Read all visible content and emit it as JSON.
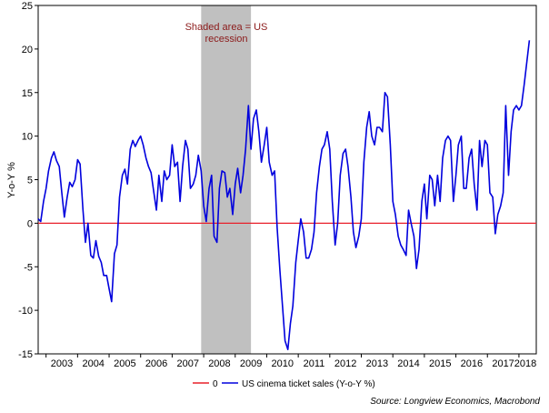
{
  "chart_data": {
    "type": "line",
    "ylabel": "Y-o-Y %",
    "ylim": [
      -15,
      25
    ],
    "yticks": [
      -15,
      -10,
      -5,
      0,
      5,
      10,
      15,
      20,
      25
    ],
    "xlim": [
      2002.75,
      2018.55
    ],
    "xticks": [
      "2003",
      "2004",
      "2005",
      "2006",
      "2007",
      "2008",
      "2009",
      "2010",
      "2011",
      "2012",
      "2013",
      "2014",
      "2015",
      "2016",
      "2017",
      "2018"
    ],
    "shaded_region": {
      "start": 2007.92,
      "end": 2009.5,
      "color": "#c0c0c0"
    },
    "annotation": {
      "lines": [
        "Shaded area = US",
        "recession"
      ]
    },
    "legend": {
      "position": "bottom",
      "entries": [
        {
          "label": "0",
          "color": "#e8202a"
        },
        {
          "label": "US cinema ticket sales (Y-o-Y %)",
          "color": "#0000dd"
        }
      ]
    },
    "source": "Source: Longview Economics, Macrobond",
    "series": [
      {
        "color": "#e8202a",
        "points": [
          [
            2002.75,
            0
          ],
          [
            2018.55,
            0
          ]
        ]
      },
      {
        "color": "#0000dd",
        "points": [
          [
            2002.75,
            0.5
          ],
          [
            2002.83,
            0.2
          ],
          [
            2002.92,
            2.5
          ],
          [
            2003.0,
            4.0
          ],
          [
            2003.08,
            6.0
          ],
          [
            2003.17,
            7.5
          ],
          [
            2003.25,
            8.2
          ],
          [
            2003.33,
            7.2
          ],
          [
            2003.42,
            6.5
          ],
          [
            2003.5,
            3.5
          ],
          [
            2003.58,
            0.7
          ],
          [
            2003.67,
            3.0
          ],
          [
            2003.75,
            4.7
          ],
          [
            2003.83,
            4.2
          ],
          [
            2003.92,
            5.0
          ],
          [
            2004.0,
            7.3
          ],
          [
            2004.08,
            6.8
          ],
          [
            2004.17,
            1.5
          ],
          [
            2004.25,
            -2.2
          ],
          [
            2004.33,
            0.0
          ],
          [
            2004.42,
            -3.7
          ],
          [
            2004.5,
            -4.0
          ],
          [
            2004.58,
            -2.0
          ],
          [
            2004.67,
            -3.8
          ],
          [
            2004.75,
            -4.5
          ],
          [
            2004.83,
            -6.0
          ],
          [
            2004.92,
            -6.0
          ],
          [
            2005.0,
            -7.5
          ],
          [
            2005.08,
            -9.0
          ],
          [
            2005.17,
            -3.5
          ],
          [
            2005.25,
            -2.5
          ],
          [
            2005.33,
            3.0
          ],
          [
            2005.42,
            5.5
          ],
          [
            2005.5,
            6.2
          ],
          [
            2005.58,
            4.5
          ],
          [
            2005.67,
            8.5
          ],
          [
            2005.75,
            9.5
          ],
          [
            2005.83,
            8.8
          ],
          [
            2005.92,
            9.5
          ],
          [
            2006.0,
            10.0
          ],
          [
            2006.08,
            9.0
          ],
          [
            2006.17,
            7.5
          ],
          [
            2006.25,
            6.5
          ],
          [
            2006.33,
            5.8
          ],
          [
            2006.42,
            3.5
          ],
          [
            2006.5,
            1.5
          ],
          [
            2006.58,
            5.5
          ],
          [
            2006.67,
            2.5
          ],
          [
            2006.75,
            6.0
          ],
          [
            2006.83,
            5.0
          ],
          [
            2006.92,
            5.5
          ],
          [
            2007.0,
            9.0
          ],
          [
            2007.08,
            6.5
          ],
          [
            2007.17,
            7.0
          ],
          [
            2007.25,
            2.5
          ],
          [
            2007.33,
            6.5
          ],
          [
            2007.42,
            9.5
          ],
          [
            2007.5,
            8.5
          ],
          [
            2007.58,
            4.0
          ],
          [
            2007.67,
            4.5
          ],
          [
            2007.75,
            5.5
          ],
          [
            2007.83,
            7.8
          ],
          [
            2007.92,
            6.0
          ],
          [
            2008.0,
            2.0
          ],
          [
            2008.08,
            0.2
          ],
          [
            2008.17,
            4.0
          ],
          [
            2008.25,
            5.5
          ],
          [
            2008.33,
            -1.5
          ],
          [
            2008.42,
            -2.2
          ],
          [
            2008.5,
            4.0
          ],
          [
            2008.58,
            6.0
          ],
          [
            2008.67,
            5.8
          ],
          [
            2008.75,
            3.0
          ],
          [
            2008.83,
            4.0
          ],
          [
            2008.92,
            1.0
          ],
          [
            2009.0,
            4.5
          ],
          [
            2009.08,
            6.3
          ],
          [
            2009.17,
            3.5
          ],
          [
            2009.25,
            5.5
          ],
          [
            2009.33,
            8.5
          ],
          [
            2009.42,
            13.5
          ],
          [
            2009.5,
            8.5
          ],
          [
            2009.58,
            12.0
          ],
          [
            2009.67,
            13.0
          ],
          [
            2009.75,
            10.5
          ],
          [
            2009.83,
            7.0
          ],
          [
            2009.92,
            9.0
          ],
          [
            2010.0,
            11.0
          ],
          [
            2010.08,
            7.0
          ],
          [
            2010.17,
            5.5
          ],
          [
            2010.25,
            6.0
          ],
          [
            2010.33,
            -0.5
          ],
          [
            2010.42,
            -5.5
          ],
          [
            2010.5,
            -9.5
          ],
          [
            2010.58,
            -13.5
          ],
          [
            2010.67,
            -14.5
          ],
          [
            2010.75,
            -11.5
          ],
          [
            2010.83,
            -9.5
          ],
          [
            2010.92,
            -4.5
          ],
          [
            2011.0,
            -2.0
          ],
          [
            2011.08,
            0.5
          ],
          [
            2011.17,
            -1.0
          ],
          [
            2011.25,
            -4.0
          ],
          [
            2011.33,
            -4.0
          ],
          [
            2011.42,
            -3.0
          ],
          [
            2011.5,
            -1.0
          ],
          [
            2011.58,
            3.5
          ],
          [
            2011.67,
            6.5
          ],
          [
            2011.75,
            8.5
          ],
          [
            2011.83,
            9.0
          ],
          [
            2011.92,
            10.5
          ],
          [
            2012.0,
            8.5
          ],
          [
            2012.08,
            2.5
          ],
          [
            2012.17,
            -2.5
          ],
          [
            2012.25,
            0.0
          ],
          [
            2012.33,
            5.5
          ],
          [
            2012.42,
            8.0
          ],
          [
            2012.5,
            8.5
          ],
          [
            2012.58,
            6.5
          ],
          [
            2012.67,
            3.0
          ],
          [
            2012.75,
            -1.0
          ],
          [
            2012.83,
            -2.8
          ],
          [
            2012.92,
            -1.5
          ],
          [
            2013.0,
            0.5
          ],
          [
            2013.08,
            7.0
          ],
          [
            2013.17,
            11.0
          ],
          [
            2013.25,
            12.8
          ],
          [
            2013.33,
            10.0
          ],
          [
            2013.42,
            9.0
          ],
          [
            2013.5,
            11.0
          ],
          [
            2013.58,
            11.0
          ],
          [
            2013.67,
            10.5
          ],
          [
            2013.75,
            15.0
          ],
          [
            2013.83,
            14.5
          ],
          [
            2013.92,
            9.0
          ],
          [
            2014.0,
            2.5
          ],
          [
            2014.08,
            1.0
          ],
          [
            2014.17,
            -1.5
          ],
          [
            2014.25,
            -2.5
          ],
          [
            2014.33,
            -3.0
          ],
          [
            2014.42,
            -3.7
          ],
          [
            2014.5,
            1.5
          ],
          [
            2014.58,
            0.0
          ],
          [
            2014.67,
            -1.5
          ],
          [
            2014.75,
            -5.2
          ],
          [
            2014.83,
            -3.0
          ],
          [
            2014.92,
            2.5
          ],
          [
            2015.0,
            4.5
          ],
          [
            2015.08,
            0.5
          ],
          [
            2015.17,
            5.5
          ],
          [
            2015.25,
            5.0
          ],
          [
            2015.33,
            2.0
          ],
          [
            2015.42,
            5.5
          ],
          [
            2015.5,
            2.5
          ],
          [
            2015.58,
            7.5
          ],
          [
            2015.67,
            9.5
          ],
          [
            2015.75,
            10.0
          ],
          [
            2015.83,
            9.5
          ],
          [
            2015.92,
            2.5
          ],
          [
            2016.0,
            5.5
          ],
          [
            2016.08,
            9.0
          ],
          [
            2016.17,
            10.0
          ],
          [
            2016.25,
            4.0
          ],
          [
            2016.33,
            4.0
          ],
          [
            2016.42,
            7.5
          ],
          [
            2016.5,
            8.5
          ],
          [
            2016.58,
            4.5
          ],
          [
            2016.67,
            1.5
          ],
          [
            2016.75,
            9.5
          ],
          [
            2016.83,
            6.5
          ],
          [
            2016.92,
            9.5
          ],
          [
            2017.0,
            9.0
          ],
          [
            2017.08,
            3.5
          ],
          [
            2017.17,
            3.0
          ],
          [
            2017.25,
            -1.2
          ],
          [
            2017.33,
            1.0
          ],
          [
            2017.42,
            2.0
          ],
          [
            2017.5,
            3.5
          ],
          [
            2017.58,
            13.5
          ],
          [
            2017.67,
            5.5
          ],
          [
            2017.75,
            10.5
          ],
          [
            2017.83,
            13.0
          ],
          [
            2017.92,
            13.5
          ],
          [
            2018.0,
            13.0
          ],
          [
            2018.08,
            13.5
          ],
          [
            2018.17,
            16.0
          ],
          [
            2018.25,
            18.5
          ],
          [
            2018.33,
            21.0
          ]
        ]
      }
    ]
  }
}
